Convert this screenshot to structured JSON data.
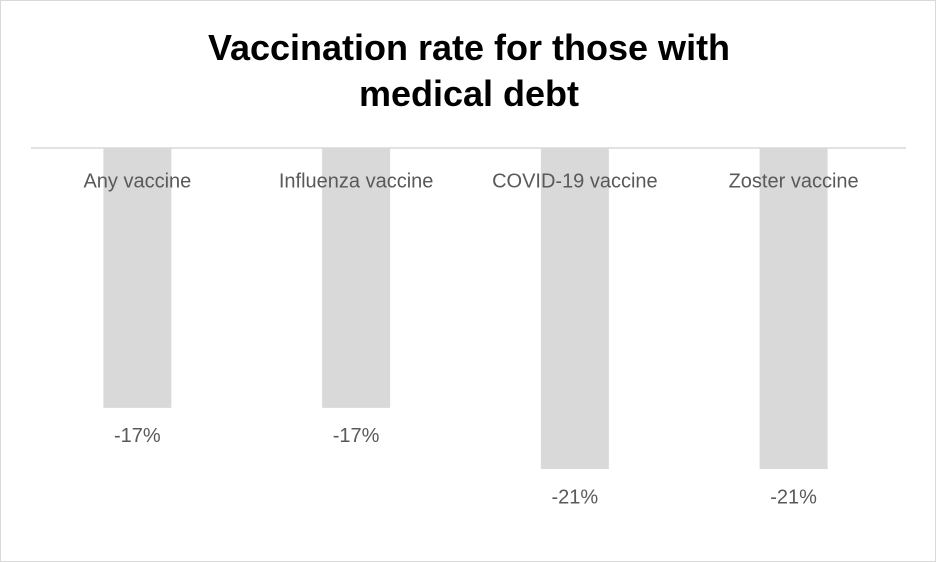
{
  "chart_data": {
    "type": "bar",
    "title": "Vaccination rate for those with medical debt",
    "categories": [
      "Any vaccine",
      "Influenza vaccine",
      "COVID-19 vaccine",
      "Zoster vaccine"
    ],
    "values": [
      -17,
      -17,
      -21,
      -21
    ],
    "value_labels": [
      "-17%",
      "-17%",
      "-21%",
      "-21%"
    ],
    "color": "#d9d9d9"
  }
}
